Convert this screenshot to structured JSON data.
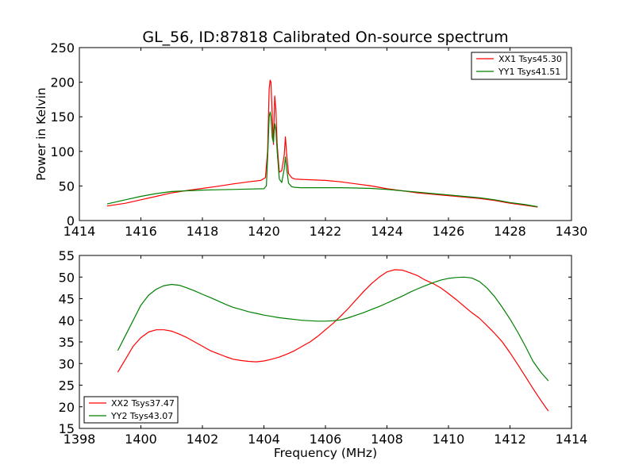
{
  "page_title": "GL_56, ID:87818 Calibrated On-source spectrum",
  "chart_data": [
    {
      "type": "line",
      "title": "GL_56, ID:87818 Calibrated On-source spectrum",
      "xlabel": "",
      "ylabel": "Power in Kelvin",
      "xlim": [
        1414,
        1430
      ],
      "ylim": [
        0,
        250
      ],
      "xticks": [
        "1414",
        "1416",
        "1418",
        "1420",
        "1422",
        "1424",
        "1426",
        "1428",
        "1430"
      ],
      "yticks": [
        "0",
        "50",
        "100",
        "150",
        "200",
        "250"
      ],
      "grid": false,
      "legend_position": "top-right",
      "series": [
        {
          "name": "XX1 Tsys45.30",
          "color": "#ff0000",
          "x": [
            1414.9,
            1415.5,
            1416,
            1416.5,
            1417,
            1417.5,
            1418,
            1418.5,
            1419,
            1419.5,
            1419.9,
            1420.05,
            1420.12,
            1420.17,
            1420.2,
            1420.23,
            1420.27,
            1420.31,
            1420.35,
            1420.39,
            1420.43,
            1420.5,
            1420.58,
            1420.66,
            1420.7,
            1420.74,
            1420.8,
            1420.9,
            1421.0,
            1421.2,
            1421.5,
            1422,
            1422.5,
            1423,
            1423.5,
            1424,
            1424.5,
            1425,
            1425.5,
            1426,
            1426.5,
            1427,
            1427.5,
            1428,
            1428.5,
            1428.9
          ],
          "values": [
            21,
            25,
            30,
            35,
            40,
            43.5,
            46.5,
            49.5,
            53,
            56,
            58,
            62,
            100,
            190,
            203,
            200,
            150,
            110,
            180,
            160,
            110,
            70,
            72,
            95,
            121,
            95,
            68,
            62,
            60,
            59.5,
            59,
            58,
            56,
            53,
            50,
            46,
            43,
            40,
            38,
            36,
            34,
            32,
            29,
            25,
            22,
            19.5
          ]
        },
        {
          "name": "YY1 Tsys41.51",
          "color": "#008000",
          "x": [
            1414.9,
            1415.5,
            1416,
            1416.5,
            1417,
            1417.5,
            1418,
            1418.5,
            1419,
            1419.5,
            1420.0,
            1420.08,
            1420.13,
            1420.17,
            1420.2,
            1420.23,
            1420.27,
            1420.31,
            1420.35,
            1420.39,
            1420.43,
            1420.5,
            1420.58,
            1420.66,
            1420.7,
            1420.74,
            1420.8,
            1420.9,
            1421.0,
            1421.2,
            1421.5,
            1422,
            1422.5,
            1423,
            1423.5,
            1424,
            1424.5,
            1425,
            1425.5,
            1426,
            1426.5,
            1427,
            1427.5,
            1428,
            1428.5,
            1428.9
          ],
          "values": [
            24,
            30,
            35,
            39,
            42,
            43,
            44,
            44.5,
            45,
            45.5,
            46,
            50,
            100,
            150,
            157,
            150,
            120,
            113,
            140,
            130,
            100,
            60,
            55,
            75,
            92,
            75,
            54,
            49,
            48,
            47.5,
            47.5,
            47.5,
            47.5,
            47,
            46.5,
            45,
            43,
            41,
            39,
            37,
            35,
            33,
            30,
            26,
            23,
            20
          ]
        }
      ]
    },
    {
      "type": "line",
      "title": "",
      "xlabel": "Frequency (MHz)",
      "ylabel": "",
      "xlim": [
        1398,
        1414
      ],
      "ylim": [
        15,
        55
      ],
      "xticks": [
        "1398",
        "1400",
        "1402",
        "1404",
        "1406",
        "1408",
        "1410",
        "1412",
        "1414"
      ],
      "yticks": [
        "15",
        "20",
        "25",
        "30",
        "35",
        "40",
        "45",
        "50",
        "55"
      ],
      "grid": false,
      "legend_position": "bottom-left",
      "series": [
        {
          "name": "XX2 Tsys37.47",
          "color": "#ff0000",
          "x": [
            1399.25,
            1399.5,
            1399.75,
            1400,
            1400.25,
            1400.5,
            1400.75,
            1401,
            1401.25,
            1401.5,
            1401.75,
            1402,
            1402.25,
            1402.5,
            1402.75,
            1403,
            1403.25,
            1403.5,
            1403.75,
            1404,
            1404.25,
            1404.5,
            1404.75,
            1405,
            1405.25,
            1405.5,
            1405.75,
            1406,
            1406.25,
            1406.5,
            1406.75,
            1407,
            1407.25,
            1407.5,
            1407.75,
            1408,
            1408.25,
            1408.5,
            1408.75,
            1409,
            1409.25,
            1409.5,
            1409.75,
            1410,
            1410.25,
            1410.5,
            1410.75,
            1411,
            1411.25,
            1411.5,
            1411.75,
            1412,
            1412.25,
            1412.5,
            1412.75,
            1413,
            1413.25
          ],
          "values": [
            28,
            31,
            34,
            36,
            37.3,
            37.8,
            37.8,
            37.5,
            36.8,
            36,
            35,
            34,
            33,
            32.3,
            31.6,
            31,
            30.7,
            30.5,
            30.4,
            30.6,
            31,
            31.5,
            32.2,
            33,
            34,
            35,
            36.3,
            37.8,
            39.3,
            41,
            42.8,
            44.8,
            46.7,
            48.5,
            50,
            51.2,
            51.7,
            51.6,
            51,
            50.3,
            49.3,
            48.5,
            47.5,
            46.2,
            44.8,
            43.3,
            41.8,
            40.5,
            38.8,
            37,
            35,
            32.5,
            29.8,
            27,
            24.2,
            21.5,
            19
          ]
        },
        {
          "name": "YY2 Tsys43.07",
          "color": "#008000",
          "x": [
            1399.25,
            1399.5,
            1399.75,
            1400,
            1400.25,
            1400.5,
            1400.75,
            1401,
            1401.25,
            1401.5,
            1401.75,
            1402,
            1402.25,
            1402.5,
            1402.75,
            1403,
            1403.25,
            1403.5,
            1403.75,
            1404,
            1404.25,
            1404.5,
            1404.75,
            1405,
            1405.25,
            1405.5,
            1405.75,
            1406,
            1406.25,
            1406.5,
            1406.75,
            1407,
            1407.25,
            1407.5,
            1407.75,
            1408,
            1408.25,
            1408.5,
            1408.75,
            1409,
            1409.25,
            1409.5,
            1409.75,
            1410,
            1410.25,
            1410.5,
            1410.75,
            1411,
            1411.25,
            1411.5,
            1411.75,
            1412,
            1412.25,
            1412.5,
            1412.75,
            1413,
            1413.25
          ],
          "values": [
            33,
            36.5,
            40,
            43.5,
            45.8,
            47.2,
            48,
            48.3,
            48.1,
            47.5,
            46.8,
            46,
            45.3,
            44.5,
            43.7,
            43,
            42.5,
            42,
            41.6,
            41.2,
            40.9,
            40.6,
            40.4,
            40.2,
            40,
            39.9,
            39.8,
            39.8,
            39.9,
            40.1,
            40.6,
            41.2,
            41.8,
            42.5,
            43.2,
            44,
            44.8,
            45.6,
            46.5,
            47.3,
            48,
            48.7,
            49.3,
            49.7,
            49.9,
            50,
            49.8,
            49,
            47.5,
            45.5,
            43,
            40.3,
            37.3,
            34,
            30.5,
            28,
            26
          ]
        }
      ]
    }
  ]
}
